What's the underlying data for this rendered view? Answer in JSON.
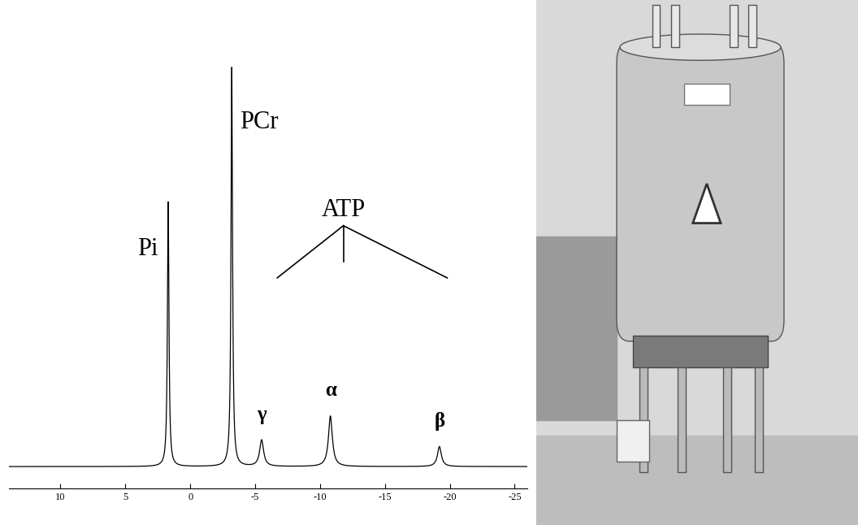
{
  "chart_data": {
    "type": "line",
    "color": "#000000",
    "peaks": [
      {
        "name": "Pi",
        "x": 1.7,
        "value": 330
      },
      {
        "name": "PCr",
        "x": -3.2,
        "value": 498
      },
      {
        "name": "γ",
        "x": -5.5,
        "value": 33
      },
      {
        "name": "α",
        "x": -10.8,
        "value": 63
      },
      {
        "name": "β",
        "x": -19.2,
        "value": 25
      }
    ],
    "annotations": [
      "ATP"
    ],
    "xlim": [
      14,
      -26
    ],
    "xticks": [
      10,
      5,
      0,
      -5,
      -10,
      -15,
      -20,
      -25
    ],
    "ylim": [
      -27,
      568
    ],
    "tick_labels": "x",
    "grid": false
  }
}
